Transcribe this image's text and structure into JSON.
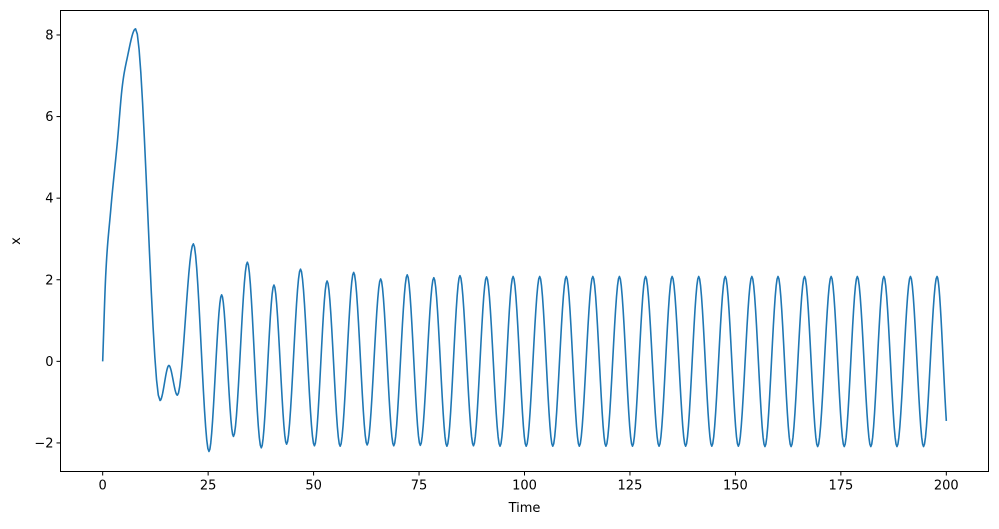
{
  "chart_data": {
    "type": "line",
    "title": "",
    "xlabel": "Time",
    "ylabel": "x",
    "xlim": [
      -10,
      210
    ],
    "ylim": [
      -2.7,
      8.6
    ],
    "xticks": [
      0,
      25,
      50,
      75,
      100,
      125,
      150,
      175,
      200
    ],
    "xtick_labels": [
      "0",
      "25",
      "50",
      "75",
      "100",
      "125",
      "150",
      "175",
      "200"
    ],
    "yticks": [
      -2,
      0,
      2,
      4,
      6,
      8
    ],
    "ytick_labels": [
      "−2",
      "0",
      "2",
      "4",
      "6",
      "8"
    ],
    "grid": false,
    "color": "#1f77b4",
    "series": [
      {
        "points": [
          [
            0,
            0
          ],
          [
            0.7,
            2.07
          ],
          [
            1.9,
            3.7
          ],
          [
            3.5,
            5.4
          ],
          [
            4.6,
            6.7
          ],
          [
            5.8,
            7.43
          ],
          [
            7.8,
            8.15
          ],
          [
            13.6,
            -0.96
          ],
          [
            15.7,
            -0.1
          ],
          [
            17.7,
            -0.83
          ],
          [
            21.5,
            2.88
          ],
          [
            25.2,
            -2.21
          ],
          [
            28.2,
            1.63
          ],
          [
            31.0,
            -1.84
          ],
          [
            34.3,
            2.43
          ],
          [
            37.6,
            -2.12
          ],
          [
            40.6,
            1.87
          ],
          [
            43.6,
            -2.03
          ],
          [
            46.9,
            2.26
          ],
          [
            50.2,
            -2.07
          ],
          [
            53.2,
            1.97
          ],
          [
            56.3,
            -2.08
          ],
          [
            59.5,
            2.18
          ],
          [
            62.7,
            -2.05
          ],
          [
            65.9,
            2.02
          ],
          [
            69.0,
            -2.07
          ],
          [
            72.2,
            2.12
          ],
          [
            75.3,
            -2.06
          ],
          [
            78.5,
            2.05
          ],
          [
            81.6,
            -2.08
          ],
          [
            84.7,
            2.1
          ],
          [
            87.9,
            -2.07
          ],
          [
            91.0,
            2.07
          ],
          [
            94.2,
            -2.08
          ],
          [
            97.3,
            2.08
          ],
          [
            100.4,
            -2.08
          ],
          [
            103.6,
            2.08
          ],
          [
            106.7,
            -2.08
          ],
          [
            109.9,
            2.08
          ],
          [
            113.0,
            -2.08
          ],
          [
            116.2,
            2.08
          ],
          [
            119.3,
            -2.08
          ],
          [
            122.5,
            2.08
          ],
          [
            125.6,
            -2.08
          ],
          [
            128.7,
            2.08
          ],
          [
            131.9,
            -2.08
          ],
          [
            135.0,
            2.08
          ],
          [
            138.2,
            -2.08
          ],
          [
            141.3,
            2.08
          ],
          [
            144.4,
            -2.08
          ],
          [
            147.6,
            2.08
          ],
          [
            150.7,
            -2.08
          ],
          [
            153.9,
            2.08
          ],
          [
            157.0,
            -2.09
          ],
          [
            160.1,
            2.08
          ],
          [
            163.2,
            -2.09
          ],
          [
            166.4,
            2.08
          ],
          [
            169.5,
            -2.09
          ],
          [
            172.7,
            2.08
          ],
          [
            175.8,
            -2.09
          ],
          [
            178.9,
            2.08
          ],
          [
            182.1,
            -2.09
          ],
          [
            185.2,
            2.08
          ],
          [
            188.3,
            -2.09
          ],
          [
            191.5,
            2.08
          ],
          [
            194.6,
            -2.09
          ],
          [
            197.8,
            2.08
          ],
          [
            200,
            -1.46
          ]
        ]
      }
    ]
  }
}
